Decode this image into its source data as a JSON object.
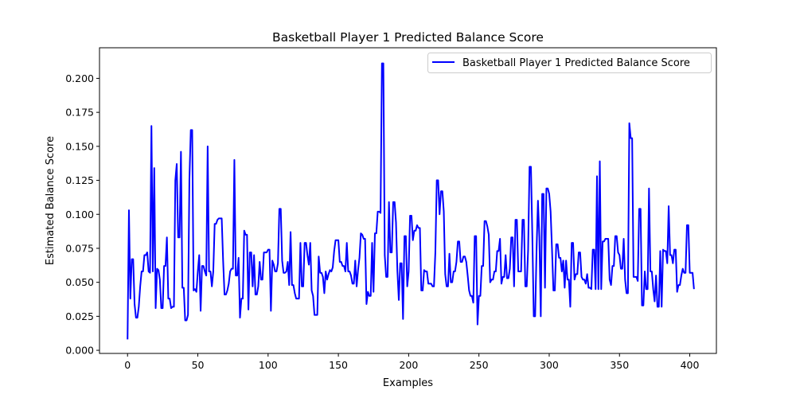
{
  "chart_data": {
    "type": "line",
    "title": "Basketball Player 1 Predicted Balance Score",
    "xlabel": "Examples",
    "ylabel": "Estimated Balance Score",
    "xlim": [
      -19.95,
      418.95
    ],
    "ylim": [
      -0.0023,
      0.2225
    ],
    "xticks": [
      0,
      50,
      100,
      150,
      200,
      250,
      300,
      350,
      400
    ],
    "xtick_labels": [
      "0",
      "50",
      "100",
      "150",
      "200",
      "250",
      "300",
      "350",
      "400"
    ],
    "yticks": [
      0.0,
      0.025,
      0.05,
      0.075,
      0.1,
      0.125,
      0.15,
      0.175,
      0.2
    ],
    "ytick_labels": [
      "0.000",
      "0.025",
      "0.050",
      "0.075",
      "0.100",
      "0.125",
      "0.150",
      "0.175",
      "0.200"
    ],
    "grid": false,
    "legend_position": "top-right",
    "color": "#0000ff",
    "series": [
      {
        "name": "Basketball Player 1 Predicted Balance Score",
        "x_start": 0,
        "x_step": 1,
        "values": [
          0.008,
          0.103,
          0.038,
          0.067,
          0.067,
          0.034,
          0.024,
          0.024,
          0.032,
          0.047,
          0.058,
          0.058,
          0.07,
          0.07,
          0.072,
          0.058,
          0.057,
          0.165,
          0.058,
          0.134,
          0.031,
          0.06,
          0.059,
          0.052,
          0.031,
          0.031,
          0.062,
          0.062,
          0.083,
          0.038,
          0.038,
          0.031,
          0.032,
          0.032,
          0.125,
          0.137,
          0.083,
          0.083,
          0.146,
          0.046,
          0.046,
          0.022,
          0.022,
          0.026,
          0.125,
          0.162,
          0.162,
          0.044,
          0.045,
          0.043,
          0.058,
          0.07,
          0.029,
          0.062,
          0.062,
          0.058,
          0.055,
          0.15,
          0.058,
          0.058,
          0.047,
          0.058,
          0.093,
          0.093,
          0.096,
          0.097,
          0.097,
          0.097,
          0.066,
          0.041,
          0.041,
          0.044,
          0.049,
          0.058,
          0.06,
          0.06,
          0.14,
          0.055,
          0.055,
          0.068,
          0.024,
          0.038,
          0.038,
          0.088,
          0.085,
          0.085,
          0.03,
          0.072,
          0.072,
          0.047,
          0.07,
          0.041,
          0.041,
          0.047,
          0.065,
          0.052,
          0.052,
          0.072,
          0.072,
          0.072,
          0.074,
          0.074,
          0.029,
          0.066,
          0.063,
          0.058,
          0.058,
          0.064,
          0.104,
          0.104,
          0.066,
          0.057,
          0.057,
          0.058,
          0.065,
          0.048,
          0.087,
          0.048,
          0.048,
          0.042,
          0.038,
          0.038,
          0.038,
          0.079,
          0.047,
          0.047,
          0.079,
          0.079,
          0.07,
          0.063,
          0.079,
          0.044,
          0.04,
          0.026,
          0.026,
          0.026,
          0.069,
          0.057,
          0.057,
          0.054,
          0.042,
          0.058,
          0.052,
          0.056,
          0.059,
          0.058,
          0.061,
          0.073,
          0.081,
          0.081,
          0.081,
          0.065,
          0.065,
          0.062,
          0.062,
          0.058,
          0.079,
          0.058,
          0.058,
          0.055,
          0.049,
          0.049,
          0.066,
          0.047,
          0.059,
          0.068,
          0.086,
          0.085,
          0.082,
          0.082,
          0.034,
          0.043,
          0.04,
          0.04,
          0.079,
          0.043,
          0.086,
          0.086,
          0.102,
          0.102,
          0.101,
          0.211,
          0.211,
          0.07,
          0.054,
          0.054,
          0.109,
          0.072,
          0.072,
          0.109,
          0.109,
          0.094,
          0.058,
          0.037,
          0.064,
          0.064,
          0.023,
          0.084,
          0.084,
          0.047,
          0.058,
          0.099,
          0.099,
          0.081,
          0.088,
          0.088,
          0.092,
          0.09,
          0.09,
          0.044,
          0.044,
          0.059,
          0.058,
          0.058,
          0.049,
          0.049,
          0.049,
          0.047,
          0.047,
          0.072,
          0.125,
          0.125,
          0.1,
          0.117,
          0.117,
          0.102,
          0.056,
          0.047,
          0.047,
          0.071,
          0.05,
          0.05,
          0.058,
          0.058,
          0.065,
          0.08,
          0.08,
          0.065,
          0.065,
          0.069,
          0.069,
          0.065,
          0.055,
          0.044,
          0.04,
          0.04,
          0.035,
          0.084,
          0.084,
          0.019,
          0.04,
          0.04,
          0.062,
          0.062,
          0.095,
          0.095,
          0.091,
          0.085,
          0.05,
          0.052,
          0.052,
          0.058,
          0.058,
          0.073,
          0.073,
          0.082,
          0.049,
          0.054,
          0.054,
          0.07,
          0.053,
          0.053,
          0.06,
          0.083,
          0.083,
          0.047,
          0.096,
          0.096,
          0.058,
          0.058,
          0.058,
          0.096,
          0.096,
          0.047,
          0.047,
          0.074,
          0.135,
          0.135,
          0.084,
          0.025,
          0.025,
          0.074,
          0.11,
          0.083,
          0.025,
          0.115,
          0.115,
          0.046,
          0.119,
          0.119,
          0.115,
          0.102,
          0.074,
          0.044,
          0.044,
          0.078,
          0.078,
          0.068,
          0.068,
          0.058,
          0.066,
          0.046,
          0.066,
          0.052,
          0.052,
          0.032,
          0.079,
          0.079,
          0.052,
          0.056,
          0.056,
          0.072,
          0.072,
          0.054,
          0.052,
          0.052,
          0.049,
          0.056,
          0.046,
          0.046,
          0.045,
          0.074,
          0.074,
          0.045,
          0.128,
          0.045,
          0.139,
          0.045,
          0.08,
          0.08,
          0.082,
          0.082,
          0.082,
          0.052,
          0.048,
          0.062,
          0.062,
          0.084,
          0.084,
          0.072,
          0.07,
          0.06,
          0.06,
          0.082,
          0.052,
          0.042,
          0.042,
          0.167,
          0.156,
          0.156,
          0.054,
          0.054,
          0.054,
          0.051,
          0.104,
          0.104,
          0.033,
          0.033,
          0.058,
          0.045,
          0.045,
          0.119,
          0.058,
          0.058,
          0.045,
          0.036,
          0.055,
          0.032,
          0.032,
          0.073,
          0.032,
          0.074,
          0.073,
          0.073,
          0.064,
          0.106,
          0.07,
          0.07,
          0.064,
          0.074,
          0.074,
          0.043,
          0.048,
          0.048,
          0.055,
          0.06,
          0.057,
          0.057,
          0.092,
          0.092,
          0.057,
          0.057,
          0.057,
          0.045
        ]
      }
    ]
  }
}
